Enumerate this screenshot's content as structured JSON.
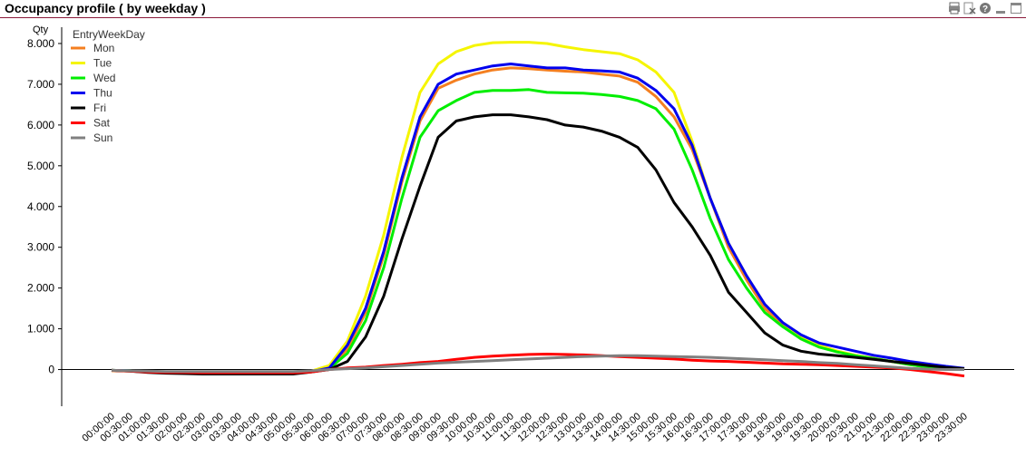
{
  "title": "Occupancy profile ( by weekday )",
  "toolbar_icons": [
    "print-icon",
    "export-excel-icon",
    "help-icon",
    "minimize-icon",
    "maximize-icon"
  ],
  "chart_data": {
    "type": "line",
    "ylabel": "Qty",
    "legend_title": "EntryWeekDay",
    "legend_position": "top-left",
    "grid": false,
    "ylim": [
      -900,
      8400
    ],
    "yticks": [
      0,
      1000,
      2000,
      3000,
      4000,
      5000,
      6000,
      7000,
      8000
    ],
    "ytick_labels": [
      "0",
      "1.000",
      "2.000",
      "3.000",
      "4.000",
      "5.000",
      "6.000",
      "7.000",
      "8.000"
    ],
    "categories": [
      "00:00:00",
      "00:30:00",
      "01:00:00",
      "01:30:00",
      "02:00:00",
      "02:30:00",
      "03:00:00",
      "03:30:00",
      "04:00:00",
      "04:30:00",
      "05:00:00",
      "05:30:00",
      "06:00:00",
      "06:30:00",
      "07:00:00",
      "07:30:00",
      "08:00:00",
      "08:30:00",
      "09:00:00",
      "09:30:00",
      "10:00:00",
      "10:30:00",
      "11:00:00",
      "11:30:00",
      "12:00:00",
      "12:30:00",
      "13:00:00",
      "13:30:00",
      "14:00:00",
      "14:30:00",
      "15:00:00",
      "15:30:00",
      "16:00:00",
      "16:30:00",
      "17:00:00",
      "17:30:00",
      "18:00:00",
      "18:30:00",
      "19:00:00",
      "19:30:00",
      "20:00:00",
      "20:30:00",
      "21:00:00",
      "21:30:00",
      "22:00:00",
      "22:30:00",
      "23:00:00",
      "23:30:00"
    ],
    "series": [
      {
        "name": "Mon",
        "color": "#f47f20",
        "values": [
          -30,
          -40,
          -60,
          -70,
          -70,
          -80,
          -90,
          -90,
          -90,
          -90,
          -90,
          -60,
          50,
          500,
          1400,
          2800,
          4600,
          6100,
          6900,
          7100,
          7250,
          7350,
          7400,
          7380,
          7350,
          7320,
          7300,
          7250,
          7200,
          7050,
          6700,
          6200,
          5400,
          4200,
          3000,
          2200,
          1500,
          1100,
          750,
          550,
          450,
          350,
          280,
          200,
          120,
          60,
          20,
          0
        ]
      },
      {
        "name": "Tue",
        "color": "#f5f500",
        "values": [
          -20,
          -30,
          -50,
          -60,
          -60,
          -70,
          -80,
          -80,
          -80,
          -80,
          -80,
          -40,
          100,
          700,
          1800,
          3300,
          5200,
          6800,
          7500,
          7800,
          7950,
          8020,
          8030,
          8030,
          8000,
          7920,
          7850,
          7800,
          7750,
          7600,
          7300,
          6800,
          5600,
          4200,
          3100,
          2300,
          1600,
          1150,
          800,
          600,
          450,
          350,
          270,
          200,
          130,
          70,
          30,
          0
        ]
      },
      {
        "name": "Wed",
        "color": "#00ee00",
        "values": [
          -20,
          -30,
          -50,
          -60,
          -60,
          -70,
          -80,
          -80,
          -80,
          -80,
          -80,
          -50,
          20,
          400,
          1200,
          2500,
          4200,
          5700,
          6350,
          6600,
          6800,
          6850,
          6850,
          6870,
          6800,
          6790,
          6780,
          6750,
          6700,
          6600,
          6400,
          5900,
          4900,
          3700,
          2700,
          2000,
          1400,
          1050,
          750,
          550,
          430,
          340,
          270,
          200,
          120,
          60,
          20,
          0
        ]
      },
      {
        "name": "Thu",
        "color": "#0000ee",
        "values": [
          -20,
          -30,
          -50,
          -60,
          -60,
          -70,
          -80,
          -80,
          -80,
          -80,
          -80,
          -50,
          40,
          600,
          1500,
          2900,
          4700,
          6200,
          7000,
          7250,
          7350,
          7450,
          7500,
          7450,
          7400,
          7400,
          7350,
          7330,
          7300,
          7150,
          6850,
          6400,
          5500,
          4200,
          3100,
          2300,
          1600,
          1150,
          850,
          650,
          550,
          450,
          350,
          280,
          200,
          140,
          80,
          30
        ]
      },
      {
        "name": "Fri",
        "color": "#000000",
        "values": [
          -20,
          -40,
          -70,
          -90,
          -100,
          -110,
          -110,
          -110,
          -110,
          -110,
          -110,
          -60,
          0,
          200,
          800,
          1800,
          3200,
          4500,
          5700,
          6100,
          6200,
          6250,
          6250,
          6200,
          6130,
          6000,
          5950,
          5850,
          5700,
          5450,
          4900,
          4100,
          3500,
          2800,
          1900,
          1400,
          900,
          600,
          450,
          380,
          340,
          300,
          250,
          200,
          150,
          100,
          50,
          20
        ]
      },
      {
        "name": "Sat",
        "color": "#ff0000",
        "values": [
          -20,
          -40,
          -60,
          -70,
          -70,
          -80,
          -80,
          -80,
          -80,
          -80,
          -80,
          -60,
          0,
          40,
          60,
          100,
          130,
          170,
          200,
          250,
          300,
          330,
          350,
          370,
          380,
          370,
          360,
          340,
          320,
          300,
          280,
          260,
          230,
          210,
          200,
          180,
          160,
          140,
          130,
          120,
          100,
          80,
          60,
          40,
          0,
          -50,
          -100,
          -160
        ]
      },
      {
        "name": "Sun",
        "color": "#808080",
        "values": [
          -20,
          -30,
          -40,
          -50,
          -50,
          -50,
          -50,
          -50,
          -50,
          -50,
          -50,
          -30,
          0,
          20,
          40,
          70,
          100,
          130,
          160,
          180,
          200,
          220,
          240,
          260,
          280,
          300,
          320,
          330,
          340,
          340,
          330,
          320,
          310,
          300,
          280,
          260,
          240,
          220,
          200,
          170,
          150,
          120,
          90,
          60,
          30,
          10,
          0,
          0
        ]
      }
    ]
  }
}
